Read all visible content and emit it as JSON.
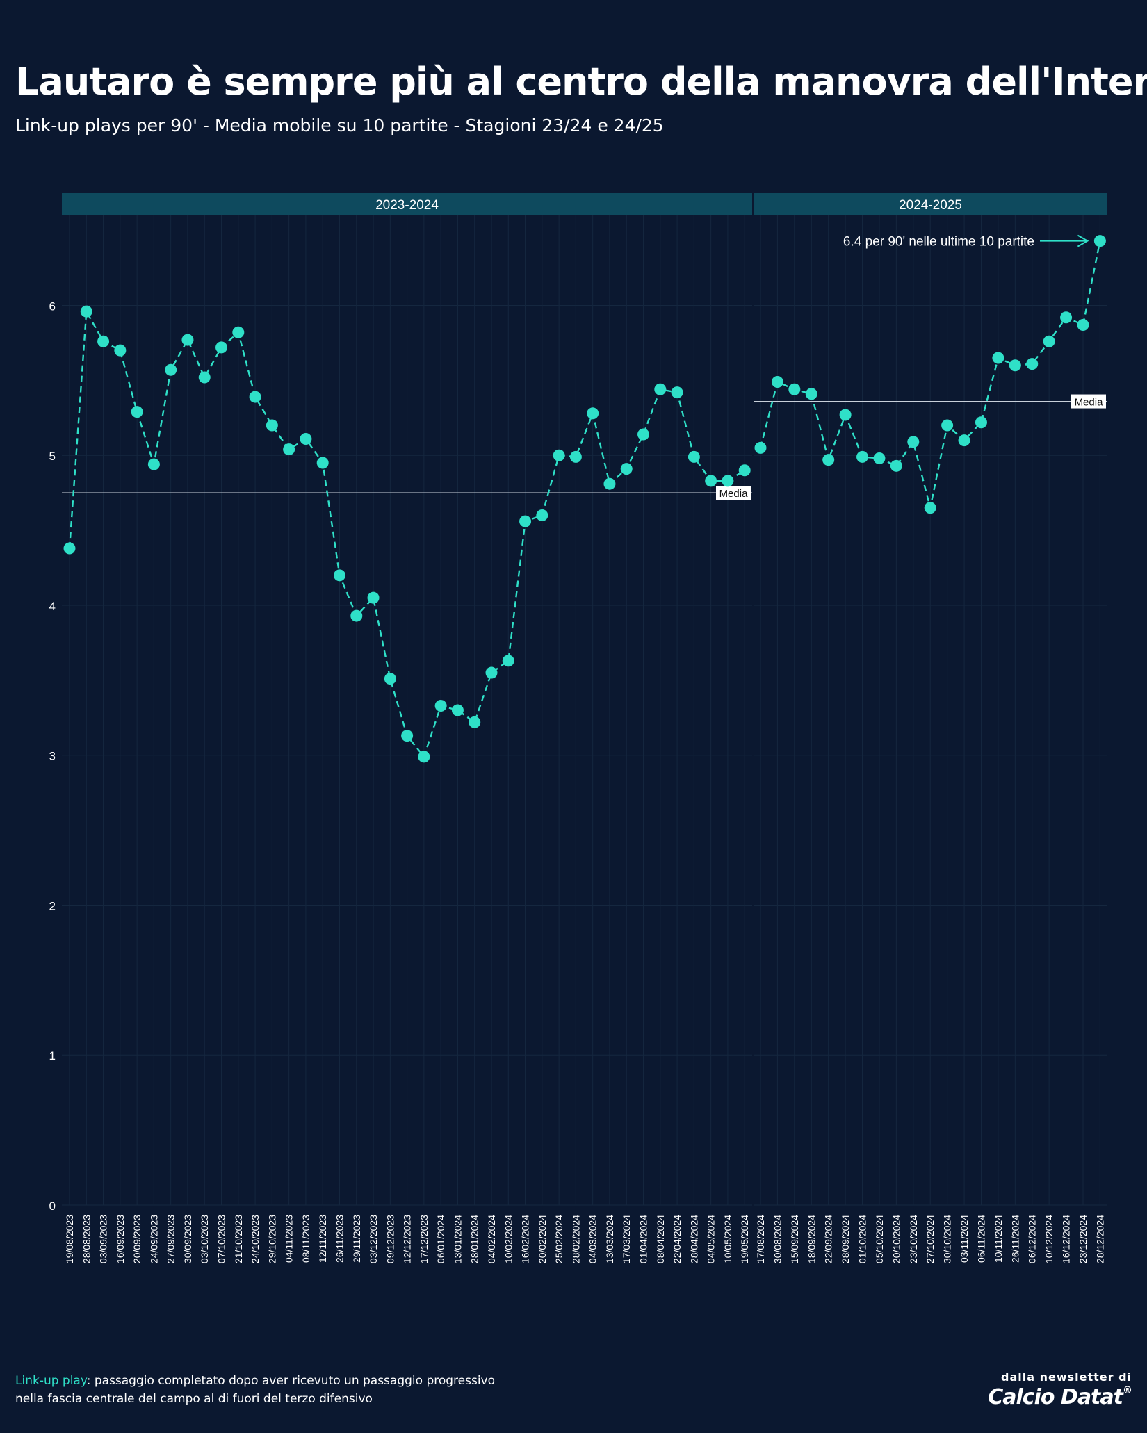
{
  "title": "Lautaro è sempre più al centro della manovra dell'Inter",
  "subtitle": "Link-up plays per 90' - Media mobile su 10 partite - Stagioni 23/24 e 24/25",
  "footnote": {
    "term": "Link-up play",
    "text": ": passaggio completato dopo aver ricevuto un passaggio progressivo nella fascia centrale del campo al di fuori del terzo difensivo"
  },
  "brand": {
    "small": "dalla newsletter di",
    "name": "Calcio Datat",
    "mark": "®"
  },
  "colors": {
    "background": "#0b1830",
    "accent": "#2fe0c8",
    "strip": "#0e4a5e",
    "grid": "#15273f"
  },
  "chart_data": {
    "type": "line",
    "ylim": [
      0,
      6.6
    ],
    "yticks": [
      0,
      1,
      2,
      3,
      4,
      5,
      6
    ],
    "annotation": "6.4 per 90' nelle ultime 10 partite",
    "panels": [
      {
        "label": "2023-2024",
        "mean_label": "Media",
        "mean": 4.75,
        "x": [
          "19/08/2023",
          "28/08/2023",
          "03/09/2023",
          "16/09/2023",
          "20/09/2023",
          "24/09/2023",
          "27/09/2023",
          "30/09/2023",
          "03/10/2023",
          "07/10/2023",
          "21/10/2023",
          "24/10/2023",
          "29/10/2023",
          "04/11/2023",
          "08/11/2023",
          "12/11/2023",
          "26/11/2023",
          "29/11/2023",
          "03/12/2023",
          "09/12/2023",
          "12/12/2023",
          "17/12/2023",
          "06/01/2024",
          "13/01/2024",
          "28/01/2024",
          "04/02/2024",
          "10/02/2024",
          "16/02/2024",
          "20/02/2024",
          "25/02/2024",
          "28/02/2024",
          "04/03/2024",
          "13/03/2024",
          "17/03/2024",
          "01/04/2024",
          "08/04/2024",
          "22/04/2024",
          "28/04/2024",
          "04/05/2024",
          "10/05/2024",
          "19/05/2024"
        ],
        "y": [
          4.38,
          5.96,
          5.76,
          5.7,
          5.29,
          4.94,
          5.57,
          5.77,
          5.52,
          5.72,
          5.82,
          5.39,
          5.2,
          5.04,
          5.11,
          4.95,
          4.2,
          3.93,
          4.05,
          3.51,
          3.13,
          2.99,
          3.33,
          3.3,
          3.22,
          3.55,
          3.63,
          4.56,
          4.6,
          5.0,
          4.99,
          5.28,
          4.81,
          4.91,
          5.14,
          5.44,
          5.42,
          4.99,
          4.83,
          4.83,
          4.9
        ]
      },
      {
        "label": "2024-2025",
        "mean_label": "Media",
        "mean": 5.36,
        "x": [
          "17/08/2024",
          "30/08/2024",
          "15/09/2024",
          "18/09/2024",
          "22/09/2024",
          "28/09/2024",
          "01/10/2024",
          "05/10/2024",
          "20/10/2024",
          "23/10/2024",
          "27/10/2024",
          "30/10/2024",
          "03/11/2024",
          "06/11/2024",
          "10/11/2024",
          "26/11/2024",
          "06/12/2024",
          "10/12/2024",
          "16/12/2024",
          "23/12/2024",
          "28/12/2024"
        ],
        "y": [
          5.05,
          5.49,
          5.44,
          5.41,
          4.97,
          5.27,
          4.99,
          4.98,
          4.93,
          5.09,
          4.65,
          5.2,
          5.1,
          5.22,
          5.65,
          5.6,
          5.61,
          5.76,
          5.92,
          5.87,
          6.43
        ]
      }
    ]
  }
}
